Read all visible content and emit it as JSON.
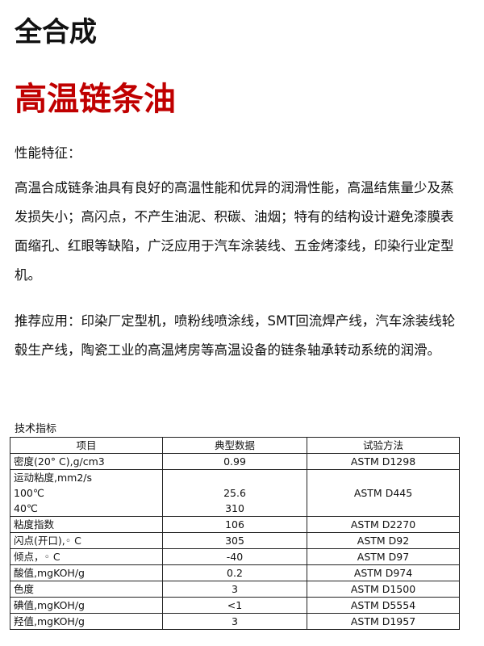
{
  "header": {
    "title": "全合成",
    "subtitle": "高温链条油"
  },
  "sections": [
    {
      "heading": "性能特征：",
      "text": "高温合成链条油具有良好的高温性能和优异的润滑性能，高温结焦量少及蒸发损失小；高闪点，不产生油泥、积碳、油烟；特有的结构设计避免漆膜表面缩孔、红眼等缺陷，广泛应用于汽车涂装线、五金烤漆线，印染行业定型机。"
    },
    {
      "text": "推荐应用：印染厂定型机，喷粉线喷涂线，SMT回流焊产线，汽车涂装线轮毂生产线，陶瓷工业的高温烤房等高温设备的链条轴承转动系统的润滑。"
    }
  ],
  "table": {
    "caption": "技术指标",
    "header": [
      "项目",
      "典型数据",
      "试验方法"
    ],
    "rows": [
      [
        "密度(20° C),g/cm3",
        "0.99",
        "ASTM D1298"
      ],
      [
        "运动粘度,mm2/s",
        "100℃",
        "40℃",
        "25.6",
        "310",
        "ASTM D445"
      ],
      [
        "粘度指数",
        "106",
        "ASTM D2270"
      ],
      [
        "闪点(开口),◦ C",
        "305",
        "ASTM D92"
      ],
      [
        "倾点，◦ C",
        "-40",
        "ASTM D97"
      ],
      [
        "酸值,mgKOH/g",
        "0.2",
        "ASTM D974"
      ],
      [
        "色度",
        "3",
        "ASTM D1500"
      ],
      [
        "碘值,mgKOH/g",
        "<1",
        "ASTM D5554"
      ],
      [
        "羟值,mgKOH/g",
        "3",
        "ASTM D1957"
      ]
    ]
  }
}
